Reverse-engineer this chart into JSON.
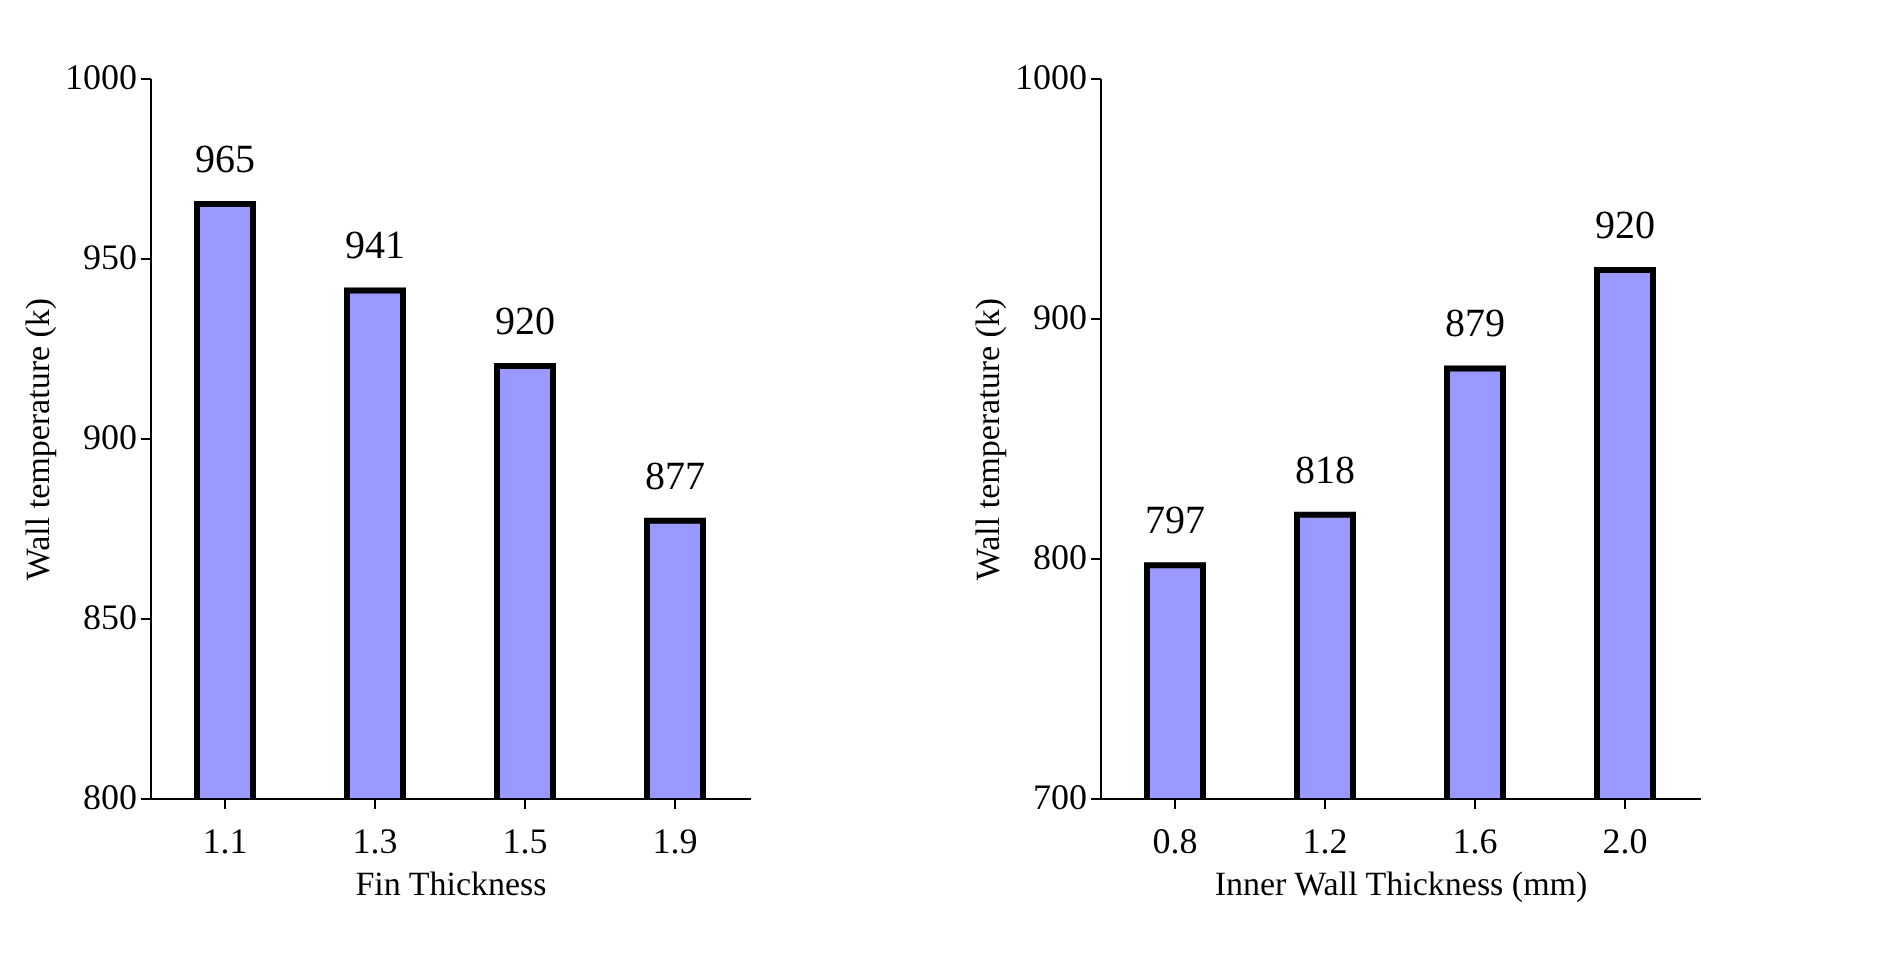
{
  "chart_data": [
    {
      "type": "bar",
      "xlabel": "Fin Thickness",
      "ylabel": "Wall temperature (k)",
      "categories": [
        "1.1",
        "1.3",
        "1.5",
        "1.9"
      ],
      "series": [
        {
          "color": "#9999ff",
          "values": [
            965,
            941,
            920,
            877
          ]
        }
      ],
      "ylim": [
        800,
        1000
      ],
      "yticks": [
        800,
        850,
        900,
        950,
        1000
      ],
      "data_labels": true,
      "grid": false
    },
    {
      "type": "bar",
      "xlabel": "Inner Wall Thickness (mm)",
      "ylabel": "Wall temperature (k)",
      "categories": [
        "0.8",
        "1.2",
        "1.6",
        "2.0"
      ],
      "series": [
        {
          "color": "#9999ff",
          "values": [
            797,
            818,
            879,
            920
          ]
        }
      ],
      "ylim": [
        700,
        1000
      ],
      "yticks": [
        700,
        800,
        900,
        1000
      ],
      "data_labels": true,
      "grid": false
    }
  ]
}
